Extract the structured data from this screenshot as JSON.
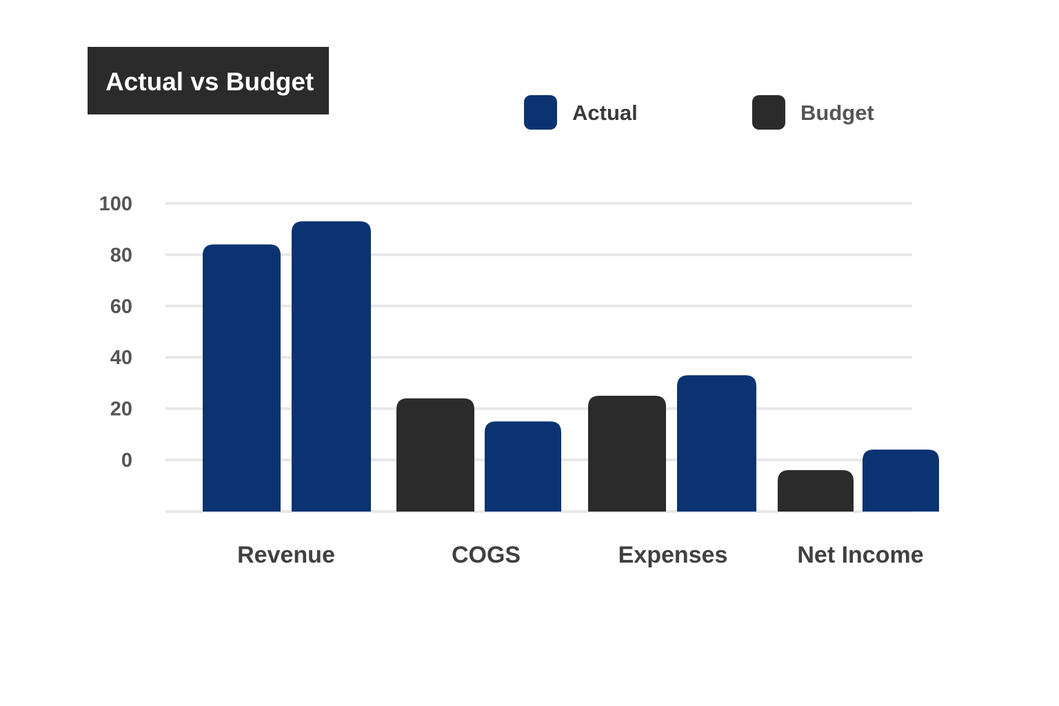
{
  "chart_data": {
    "type": "bar",
    "title": "Actual vs Budget",
    "categories": [
      "Revenue",
      "COGS",
      "Expenses",
      "Net Income"
    ],
    "yticks": [
      "100",
      "80",
      "60",
      "40",
      "20",
      "0"
    ],
    "ylim": [
      -20,
      100
    ],
    "grid": true,
    "legend_position": "top-right",
    "legend": [
      {
        "name": "Actual",
        "color": "#0b3372",
        "text_color": "#3a3a3a"
      },
      {
        "name": "Budget",
        "color": "#2b2b2b",
        "text_color": "#555555"
      }
    ],
    "bars": [
      [
        {
          "series": "Actual",
          "value": 84
        },
        {
          "series": "Actual",
          "value": 93
        }
      ],
      [
        {
          "series": "Budget",
          "value": 24
        },
        {
          "series": "Actual",
          "value": 15
        }
      ],
      [
        {
          "series": "Budget",
          "value": 25
        },
        {
          "series": "Actual",
          "value": 33
        }
      ],
      [
        {
          "series": "Budget",
          "value": -4
        },
        {
          "series": "Actual",
          "value": 4
        }
      ]
    ]
  }
}
